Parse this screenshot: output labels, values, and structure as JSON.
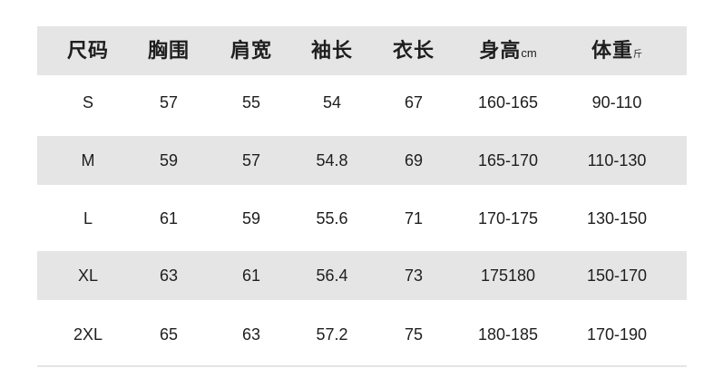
{
  "header": {
    "columns": [
      {
        "label": "尺码",
        "unit": ""
      },
      {
        "label": "胸围",
        "unit": ""
      },
      {
        "label": "肩宽",
        "unit": ""
      },
      {
        "label": "袖长",
        "unit": ""
      },
      {
        "label": "衣长",
        "unit": ""
      },
      {
        "label": "身高",
        "unit": "cm"
      },
      {
        "label": "体重",
        "unit": "斤"
      }
    ]
  },
  "rows": [
    [
      "S",
      "57",
      "55",
      "54",
      "67",
      "160-165",
      "90-110"
    ],
    [
      "M",
      "59",
      "57",
      "54.8",
      "69",
      "165-170",
      "110-130"
    ],
    [
      "L",
      "61",
      "59",
      "55.6",
      "71",
      "170-175",
      "130-150"
    ],
    [
      "XL",
      "63",
      "61",
      "56.4",
      "73",
      "175180",
      "150-170"
    ],
    [
      "2XL",
      "65",
      "63",
      "57.2",
      "75",
      "180-185",
      "170-190"
    ]
  ],
  "colors": {
    "band": "#e5e5e5",
    "text": "#1e1e1e"
  }
}
